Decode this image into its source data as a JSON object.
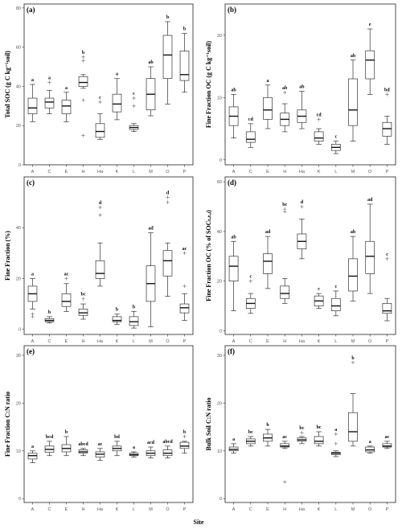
{
  "figure": {
    "x_title": "Site"
  },
  "chart_data": [
    {
      "type": "boxplot",
      "panel": "(a)",
      "ylabel": "Total SOC (g C kg⁻¹soil)",
      "ylim": [
        0,
        82
      ],
      "yticks": [
        0,
        20,
        40,
        60,
        80
      ],
      "categories": [
        "A",
        "C",
        "E",
        "H",
        "Ha",
        "K",
        "L",
        "M",
        "O",
        "P"
      ],
      "boxes": [
        {
          "site": "A",
          "min": 22,
          "q1": 26,
          "median": 29,
          "q3": 34,
          "max": 41,
          "outliers": [],
          "letter": "a"
        },
        {
          "site": "C",
          "min": 26,
          "q1": 29,
          "median": 32,
          "q3": 34,
          "max": 38,
          "outliers": [
            42
          ],
          "letter": "a"
        },
        {
          "site": "E",
          "min": 22,
          "q1": 26,
          "median": 30,
          "q3": 33,
          "max": 37,
          "outliers": [],
          "letter": "a"
        },
        {
          "site": "H",
          "min": 39,
          "q1": 40,
          "median": 42,
          "q3": 45,
          "max": 46,
          "outliers": [
            15,
            33,
            53,
            55
          ],
          "letter": "b"
        },
        {
          "site": "Ha",
          "min": 13,
          "q1": 14,
          "median": 17,
          "q3": 21,
          "max": 26,
          "outliers": [
            32
          ],
          "letter": "c"
        },
        {
          "site": "K",
          "min": 23,
          "q1": 27,
          "median": 31,
          "q3": 36,
          "max": 44,
          "outliers": [],
          "letter": "a"
        },
        {
          "site": "L",
          "min": 17,
          "q1": 18,
          "median": 19,
          "q3": 20,
          "max": 21,
          "outliers": [
            30,
            34
          ],
          "letter": "c"
        },
        {
          "site": "M",
          "min": 25,
          "q1": 28,
          "median": 36,
          "q3": 44,
          "max": 50,
          "outliers": [],
          "letter": "ab"
        },
        {
          "site": "O",
          "min": 31,
          "q1": 44,
          "median": 56,
          "q3": 66,
          "max": 73,
          "outliers": [],
          "letter": "b"
        },
        {
          "site": "P",
          "min": 37,
          "q1": 43,
          "median": 46,
          "q3": 58,
          "max": 67,
          "outliers": [],
          "letter": "b"
        }
      ]
    },
    {
      "type": "boxplot",
      "panel": "(b)",
      "ylabel": "Fine Fraction OC (g C kg⁻¹soil)",
      "ylim": [
        -0.8,
        25
      ],
      "yticks": [
        0,
        10,
        20
      ],
      "categories": [
        "A",
        "C",
        "E",
        "H",
        "Ha",
        "K",
        "L",
        "M",
        "O",
        "P"
      ],
      "boxes": [
        {
          "site": "A",
          "min": 3.5,
          "q1": 5.5,
          "median": 7,
          "q3": 8.5,
          "max": 10.5,
          "outliers": [],
          "letter": "ab"
        },
        {
          "site": "C",
          "min": 2,
          "q1": 2.8,
          "median": 3.3,
          "q3": 4.5,
          "max": 5.8,
          "outliers": [],
          "letter": "cd"
        },
        {
          "site": "E",
          "min": 5,
          "q1": 6.5,
          "median": 8,
          "q3": 10,
          "max": 12,
          "outliers": [],
          "letter": "a"
        },
        {
          "site": "H",
          "min": 4.5,
          "q1": 5.5,
          "median": 6.5,
          "q3": 7.5,
          "max": 9,
          "outliers": [
            10.8
          ],
          "letter": "ab"
        },
        {
          "site": "Ha",
          "min": 5,
          "q1": 6,
          "median": 7,
          "q3": 8,
          "max": 11,
          "outliers": [],
          "letter": "ab"
        },
        {
          "site": "K",
          "min": 2.5,
          "q1": 3,
          "median": 3.5,
          "q3": 4.5,
          "max": 5,
          "outliers": [
            6.5
          ],
          "letter": "cd"
        },
        {
          "site": "L",
          "min": 1,
          "q1": 1.5,
          "median": 2,
          "q3": 2.5,
          "max": 3,
          "outliers": [],
          "letter": "c"
        },
        {
          "site": "M",
          "min": 3,
          "q1": 5.5,
          "median": 8,
          "q3": 13,
          "max": 16,
          "outliers": [],
          "letter": "ab"
        },
        {
          "site": "O",
          "min": 10.5,
          "q1": 13,
          "median": 16,
          "q3": 17.5,
          "max": 21,
          "outliers": [],
          "letter": "e"
        },
        {
          "site": "P",
          "min": 2.5,
          "q1": 3.8,
          "median": 5,
          "q3": 6,
          "max": 7,
          "outliers": [
            10.5
          ],
          "letter": "bd"
        }
      ]
    },
    {
      "type": "boxplot",
      "panel": "(c)",
      "ylabel": "Fine Fraction (%)",
      "ylim": [
        -2,
        60
      ],
      "yticks": [
        0,
        20,
        40
      ],
      "categories": [
        "A",
        "C",
        "E",
        "H",
        "Ha",
        "K",
        "L",
        "M",
        "O",
        "P"
      ],
      "boxes": [
        {
          "site": "A",
          "min": 8,
          "q1": 11,
          "median": 14,
          "q3": 17,
          "max": 20,
          "outliers": [
            5,
            6
          ],
          "letter": "a"
        },
        {
          "site": "C",
          "min": 2.5,
          "q1": 3,
          "median": 3.5,
          "q3": 4.2,
          "max": 5,
          "outliers": [],
          "letter": "b"
        },
        {
          "site": "E",
          "min": 7,
          "q1": 9,
          "median": 11,
          "q3": 14,
          "max": 18,
          "outliers": [
            20
          ],
          "letter": "ac"
        },
        {
          "site": "H",
          "min": 4,
          "q1": 5.5,
          "median": 6.5,
          "q3": 8,
          "max": 10,
          "outliers": [
            12
          ],
          "letter": "bc"
        },
        {
          "site": "Ha",
          "min": 17,
          "q1": 20,
          "median": 22,
          "q3": 27,
          "max": 34,
          "outliers": [
            45,
            48
          ],
          "letter": "d"
        },
        {
          "site": "K",
          "min": 2,
          "q1": 3,
          "median": 3.5,
          "q3": 5,
          "max": 6,
          "outliers": [],
          "letter": "b"
        },
        {
          "site": "L",
          "min": 0.5,
          "q1": 1.5,
          "median": 3,
          "q3": 5,
          "max": 7,
          "outliers": [],
          "letter": "b"
        },
        {
          "site": "M",
          "min": 1,
          "q1": 11,
          "median": 18,
          "q3": 25,
          "max": 38,
          "outliers": [],
          "letter": "ad"
        },
        {
          "site": "O",
          "min": 13,
          "q1": 21,
          "median": 27,
          "q3": 31,
          "max": 34,
          "outliers": [
            50,
            52
          ],
          "letter": "d"
        },
        {
          "site": "P",
          "min": 3.5,
          "q1": 6.5,
          "median": 8.5,
          "q3": 10,
          "max": 14,
          "outliers": [
            17,
            30
          ],
          "letter": "ac"
        }
      ]
    },
    {
      "type": "boxplot",
      "panel": "(d)",
      "ylabel": "Fine Fraction OC (% of SOCₜₒₜₐₗ)",
      "ylim": [
        -1.5,
        62
      ],
      "yticks": [
        0,
        20,
        40,
        60
      ],
      "categories": [
        "A",
        "C",
        "E",
        "H",
        "Ha",
        "K",
        "L",
        "M",
        "O",
        "P"
      ],
      "boxes": [
        {
          "site": "A",
          "min": 8,
          "q1": 20,
          "median": 26,
          "q3": 30,
          "max": 36,
          "outliers": [],
          "letter": "ab"
        },
        {
          "site": "C",
          "min": 7,
          "q1": 9,
          "median": 11,
          "q3": 13,
          "max": 15,
          "outliers": [
            20
          ],
          "letter": "c"
        },
        {
          "site": "E",
          "min": 17,
          "q1": 23,
          "median": 28,
          "q3": 31,
          "max": 38,
          "outliers": [],
          "letter": "ad"
        },
        {
          "site": "H",
          "min": 11,
          "q1": 13,
          "median": 15,
          "q3": 18,
          "max": 21,
          "outliers": [
            48,
            49
          ],
          "letter": "bc"
        },
        {
          "site": "Ha",
          "min": 29,
          "q1": 33,
          "median": 36,
          "q3": 39,
          "max": 45,
          "outliers": [
            50
          ],
          "letter": "d"
        },
        {
          "site": "K",
          "min": 9,
          "q1": 10,
          "median": 12,
          "q3": 14,
          "max": 15,
          "outliers": [],
          "letter": "c"
        },
        {
          "site": "L",
          "min": 6,
          "q1": 8,
          "median": 10,
          "q3": 13,
          "max": 16,
          "outliers": [],
          "letter": "c"
        },
        {
          "site": "M",
          "min": 12,
          "q1": 16,
          "median": 22,
          "q3": 29,
          "max": 38,
          "outliers": [],
          "letter": "ab"
        },
        {
          "site": "O",
          "min": 15,
          "q1": 23,
          "median": 30,
          "q3": 36,
          "max": 51,
          "outliers": [],
          "letter": "ad"
        },
        {
          "site": "P",
          "min": 4,
          "q1": 7,
          "median": 8,
          "q3": 11,
          "max": 13,
          "outliers": [
            29
          ],
          "letter": "c"
        }
      ]
    },
    {
      "type": "boxplot",
      "panel": "(e)",
      "ylabel": "Fine Fraction C:N ratio",
      "ylim": [
        -0.8,
        32
      ],
      "yticks": [
        0,
        10,
        20,
        30
      ],
      "categories": [
        "A",
        "C",
        "E",
        "H",
        "Ha",
        "K",
        "L",
        "M",
        "O",
        "P"
      ],
      "boxes": [
        {
          "site": "A",
          "min": 7.5,
          "q1": 8.3,
          "median": 9,
          "q3": 9.5,
          "max": 10,
          "outliers": [],
          "letter": "a"
        },
        {
          "site": "C",
          "min": 9,
          "q1": 9.7,
          "median": 10.3,
          "q3": 11,
          "max": 12,
          "outliers": [],
          "letter": "bcd"
        },
        {
          "site": "E",
          "min": 9,
          "q1": 9.8,
          "median": 10.5,
          "q3": 11.3,
          "max": 13,
          "outliers": [],
          "letter": "b"
        },
        {
          "site": "H",
          "min": 9,
          "q1": 9.5,
          "median": 9.8,
          "q3": 10.2,
          "max": 10.5,
          "outliers": [],
          "letter": "abcd"
        },
        {
          "site": "Ha",
          "min": 8,
          "q1": 8.7,
          "median": 9.3,
          "q3": 9.8,
          "max": 10.5,
          "outliers": [],
          "letter": "ac"
        },
        {
          "site": "K",
          "min": 9,
          "q1": 10,
          "median": 10.5,
          "q3": 11,
          "max": 12,
          "outliers": [],
          "letter": "bd"
        },
        {
          "site": "L",
          "min": 8.7,
          "q1": 9,
          "median": 9.2,
          "q3": 9.5,
          "max": 9.8,
          "outliers": [],
          "letter": "a"
        },
        {
          "site": "M",
          "min": 8.5,
          "q1": 9,
          "median": 9.5,
          "q3": 10,
          "max": 10.8,
          "outliers": [],
          "letter": "acd"
        },
        {
          "site": "O",
          "min": 8.5,
          "q1": 9,
          "median": 9.5,
          "q3": 10.2,
          "max": 11,
          "outliers": [],
          "letter": "abcd"
        },
        {
          "site": "P",
          "min": 9.5,
          "q1": 10.5,
          "median": 11,
          "q3": 11.8,
          "max": 12,
          "outliers": [
            13
          ],
          "letter": "b"
        }
      ]
    },
    {
      "type": "boxplot",
      "panel": "(f)",
      "ylabel": "Bulk Soil C:N ratio",
      "ylim": [
        -0.8,
        32
      ],
      "yticks": [
        0,
        10,
        20,
        30
      ],
      "categories": [
        "A",
        "C",
        "E",
        "H",
        "Ha",
        "K",
        "L",
        "M",
        "O",
        "P"
      ],
      "boxes": [
        {
          "site": "A",
          "min": 9.5,
          "q1": 10,
          "median": 10.3,
          "q3": 10.8,
          "max": 11.5,
          "outliers": [],
          "letter": "a"
        },
        {
          "site": "C",
          "min": 11,
          "q1": 11.5,
          "median": 12,
          "q3": 12.5,
          "max": 13,
          "outliers": [],
          "letter": "bc"
        },
        {
          "site": "E",
          "min": 11,
          "q1": 12,
          "median": 12.7,
          "q3": 13.5,
          "max": 14.5,
          "outliers": [],
          "letter": "b"
        },
        {
          "site": "H",
          "min": 10.5,
          "q1": 10.8,
          "median": 11,
          "q3": 11.5,
          "max": 12,
          "outliers": [
            3.5
          ],
          "letter": "ac"
        },
        {
          "site": "Ha",
          "min": 11.5,
          "q1": 12,
          "median": 12.3,
          "q3": 12.7,
          "max": 13,
          "outliers": [
            13.8
          ],
          "letter": "bc"
        },
        {
          "site": "K",
          "min": 11,
          "q1": 11.5,
          "median": 12,
          "q3": 13,
          "max": 14,
          "outliers": [],
          "letter": "bc"
        },
        {
          "site": "L",
          "min": 8.8,
          "q1": 9.2,
          "median": 9.5,
          "q3": 9.7,
          "max": 10,
          "outliers": [
            11.5,
            13.5
          ],
          "letter": "a"
        },
        {
          "site": "M",
          "min": 11,
          "q1": 12,
          "median": 14,
          "q3": 18,
          "max": 22,
          "outliers": [
            28.5
          ],
          "letter": "b"
        },
        {
          "site": "O",
          "min": 9.5,
          "q1": 9.8,
          "median": 10.2,
          "q3": 10.8,
          "max": 11,
          "outliers": [],
          "letter": "a"
        },
        {
          "site": "P",
          "min": 10.5,
          "q1": 10.8,
          "median": 11,
          "q3": 11.5,
          "max": 12,
          "outliers": [],
          "letter": "ac"
        }
      ]
    }
  ]
}
